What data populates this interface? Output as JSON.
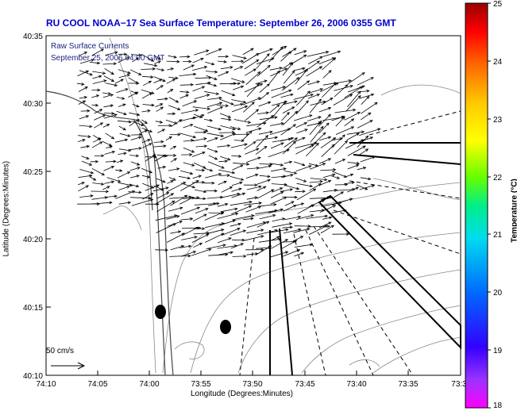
{
  "title": "RU COOL  NOAA−17  Sea Surface Temperature:  September 26, 2006 0355 GMT",
  "legend": {
    "line1": "Raw Surface Currents",
    "line2": "September 25, 2006 04:00 GMT"
  },
  "axes": {
    "xlabel": "Longitude (Degrees:Minutes)",
    "ylabel": "Latitude (Degrees:Minutes)",
    "x_ticks": [
      "74:10",
      "74:05",
      "74:00",
      "73:55",
      "73:50",
      "73:45",
      "73:40",
      "73:35",
      "73:3"
    ],
    "y_ticks": [
      "40:35",
      "40:30",
      "40:25",
      "40:20",
      "40:15",
      "40:10"
    ]
  },
  "scale_arrow": {
    "label": "50 cm/s"
  },
  "colorbar": {
    "title": "Temperature (°C)",
    "ticks": [
      "25",
      "24",
      "23",
      "22",
      "21",
      "20",
      "19",
      "18"
    ],
    "range": [
      18,
      25
    ]
  },
  "colors": {
    "title": "#0000cc",
    "legend": "#1a237e"
  }
}
